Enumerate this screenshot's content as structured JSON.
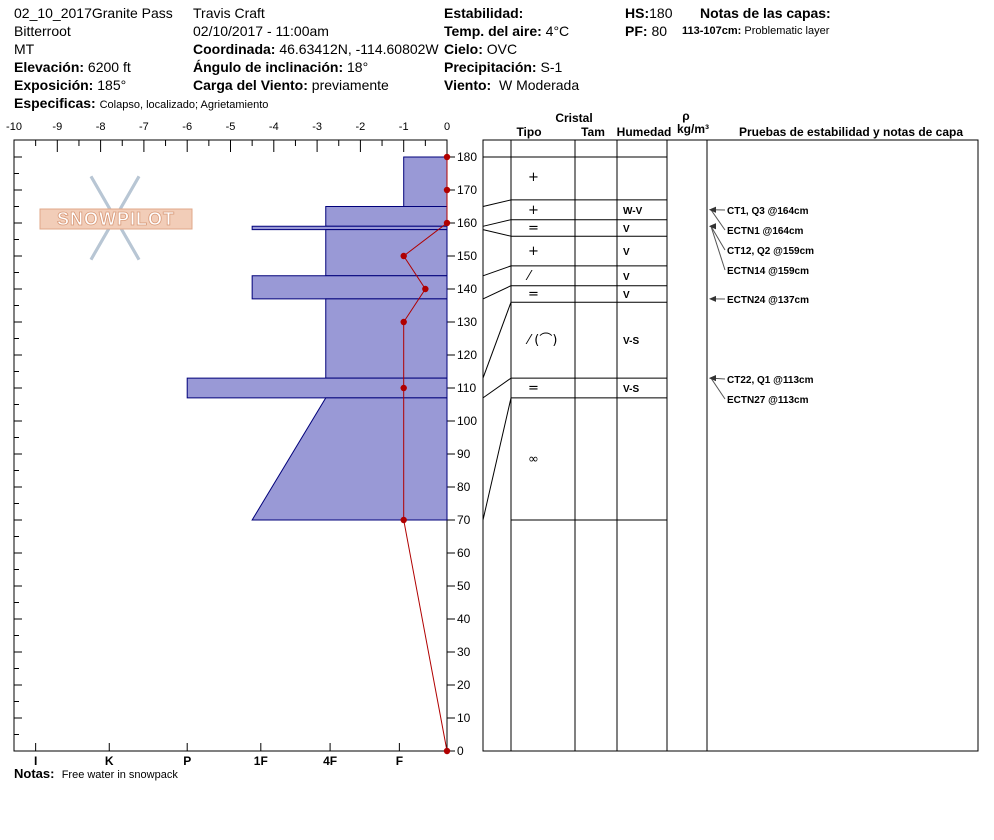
{
  "header": {
    "pit_name": "02_10_2017Granite Pass",
    "range": "Bitterroot",
    "state": "MT",
    "elevation_label": "Elevación:",
    "elevation": "6200 ft",
    "aspect_label": "Exposición:",
    "aspect": "185°",
    "specifics_label": "Especificas:",
    "specifics": "Colapso, localizado;  Agrietamiento",
    "observer": "Travis  Craft",
    "datetime": "02/10/2017 - 11:00am",
    "coord_label": "Coordinada:",
    "coord": "46.63412N, -114.60802W",
    "slope_label": "Ángulo de inclinación:",
    "slope": "18°",
    "wind_load_label": "Carga del Viento:",
    "wind_load": "previamente",
    "stability_label": "Estabilidad:",
    "air_temp_label": "Temp. del aire:",
    "air_temp": "4°C",
    "sky_label": "Cielo:",
    "sky": "OVC",
    "precip_label": "Precipitación:",
    "precip": "S-1",
    "wind_label": "Viento:",
    "wind": "W Moderada",
    "hs_label": "HS:",
    "hs": "180",
    "pf_label": "PF:",
    "pf": "80",
    "layer_notes_label": "Notas de las capas:",
    "layer_note_range": "113-107cm:",
    "layer_note_text": "Problematic layer"
  },
  "notes_label": "Notas:",
  "notes": "Free water in snowpack",
  "table_headers": {
    "cristal": "Cristal",
    "tipo": "Tipo",
    "tam": "Tam",
    "humedad": "Humedad",
    "rho": "ρ",
    "density_unit": "kg/m³",
    "tests": "Pruebas de estabilidad y notas de capa"
  },
  "logo_text": "SNOWPILOT",
  "colors": {
    "layer_fill": "#9999d6",
    "layer_stroke": "#00007a",
    "temp_line": "#b00000"
  },
  "chart_data": {
    "type": "snow_profile",
    "top_axis_ticks": [
      "-10",
      "-9",
      "-8",
      "-7",
      "-6",
      "-5",
      "-4",
      "-3",
      "-2",
      "-1",
      "0"
    ],
    "temperature_range": [
      -10,
      0
    ],
    "hardness_ticks": [
      "I",
      "K",
      "P",
      "1F",
      "4F",
      "F"
    ],
    "height_range": [
      0,
      180
    ],
    "height_ticks": [
      0,
      10,
      20,
      30,
      40,
      50,
      60,
      70,
      80,
      90,
      100,
      110,
      120,
      130,
      140,
      150,
      160,
      170,
      180
    ],
    "layers": [
      {
        "top": 180,
        "bottom": 165,
        "hardness_top": -1,
        "hardness_bottom": -1
      },
      {
        "top": 165,
        "bottom": 159,
        "hardness_top": -2.8,
        "hardness_bottom": -2.8
      },
      {
        "top": 159,
        "bottom": 158,
        "hardness_top": -4.5,
        "hardness_bottom": -4.5
      },
      {
        "top": 158,
        "bottom": 144,
        "hardness_top": -2.8,
        "hardness_bottom": -2.8
      },
      {
        "top": 144,
        "bottom": 137,
        "hardness_top": -4.5,
        "hardness_bottom": -4.5
      },
      {
        "top": 137,
        "bottom": 113,
        "hardness_top": -2.8,
        "hardness_bottom": -2.8
      },
      {
        "top": 113,
        "bottom": 107,
        "hardness_top": -6,
        "hardness_bottom": -6
      },
      {
        "top": 107,
        "bottom": 70,
        "hardness_top": -2.8,
        "hardness_bottom": -4.5
      }
    ],
    "temperature_profile": [
      {
        "height": 180,
        "temp": 0
      },
      {
        "height": 170,
        "temp": 0
      },
      {
        "height": 160,
        "temp": 0
      },
      {
        "height": 150,
        "temp": -1
      },
      {
        "height": 140,
        "temp": -0.5
      },
      {
        "height": 130,
        "temp": -1
      },
      {
        "height": 110,
        "temp": -1
      },
      {
        "height": 70,
        "temp": -1
      },
      {
        "height": 0,
        "temp": 0
      }
    ],
    "boundaries": [
      180,
      167,
      161,
      156,
      147,
      141,
      136,
      113,
      107,
      70
    ],
    "layer_rows": [
      {
        "center": 174,
        "tipo": "+",
        "humedad": ""
      },
      {
        "center": 164,
        "tipo": "+",
        "humedad": "W-V"
      },
      {
        "center": 158.5,
        "tipo": "=",
        "humedad": "V"
      },
      {
        "center": 151.5,
        "tipo": "+",
        "humedad": "V"
      },
      {
        "center": 144,
        "tipo": "⁄",
        "humedad": "V"
      },
      {
        "center": 138.5,
        "tipo": "=",
        "humedad": "V"
      },
      {
        "center": 124.5,
        "tipo": "⁄ (⌒)",
        "humedad": "V-S"
      },
      {
        "center": 110,
        "tipo": "=",
        "humedad": "V-S"
      },
      {
        "center": 88.5,
        "tipo": "∞",
        "humedad": ""
      }
    ],
    "tests": [
      {
        "height": 164,
        "text": "CT1, Q3 @164cm"
      },
      {
        "height": 164,
        "text": "ECTN1 @164cm"
      },
      {
        "height": 159,
        "text": "CT12, Q2 @159cm"
      },
      {
        "height": 159,
        "text": "ECTN14 @159cm"
      },
      {
        "height": 137,
        "text": "ECTN24 @137cm"
      },
      {
        "height": 113,
        "text": "CT22, Q1 @113cm"
      },
      {
        "height": 113,
        "text": "ECTN27 @113cm"
      }
    ]
  }
}
